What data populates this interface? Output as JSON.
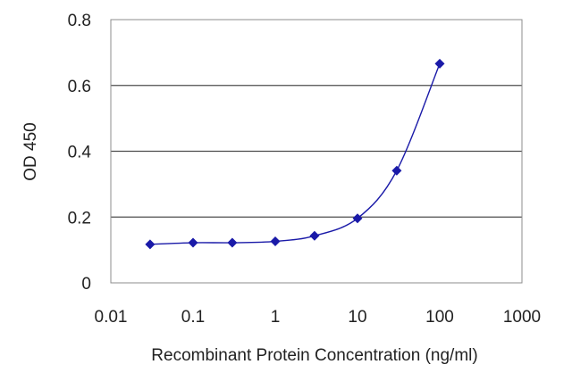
{
  "chart_data": {
    "type": "line",
    "title": "",
    "xlabel": "Recombinant Protein Concentration (ng/ml)",
    "ylabel": "OD 450",
    "x_scale": "log",
    "xlim": [
      0.01,
      1000
    ],
    "ylim": [
      0,
      0.8
    ],
    "x_ticks": [
      "0.01",
      "0.1",
      "1",
      "10",
      "100",
      "1000"
    ],
    "y_ticks": [
      "0",
      "0.2",
      "0.4",
      "0.6",
      "0.8"
    ],
    "grid": "horizontal",
    "legend": "none",
    "series": [
      {
        "color": "#1a1aa8",
        "marker": "diamond",
        "x": [
          0.03,
          0.1,
          0.3,
          1,
          3,
          10,
          30,
          100
        ],
        "y": [
          0.117,
          0.122,
          0.122,
          0.126,
          0.143,
          0.196,
          0.341,
          0.666
        ]
      }
    ]
  }
}
